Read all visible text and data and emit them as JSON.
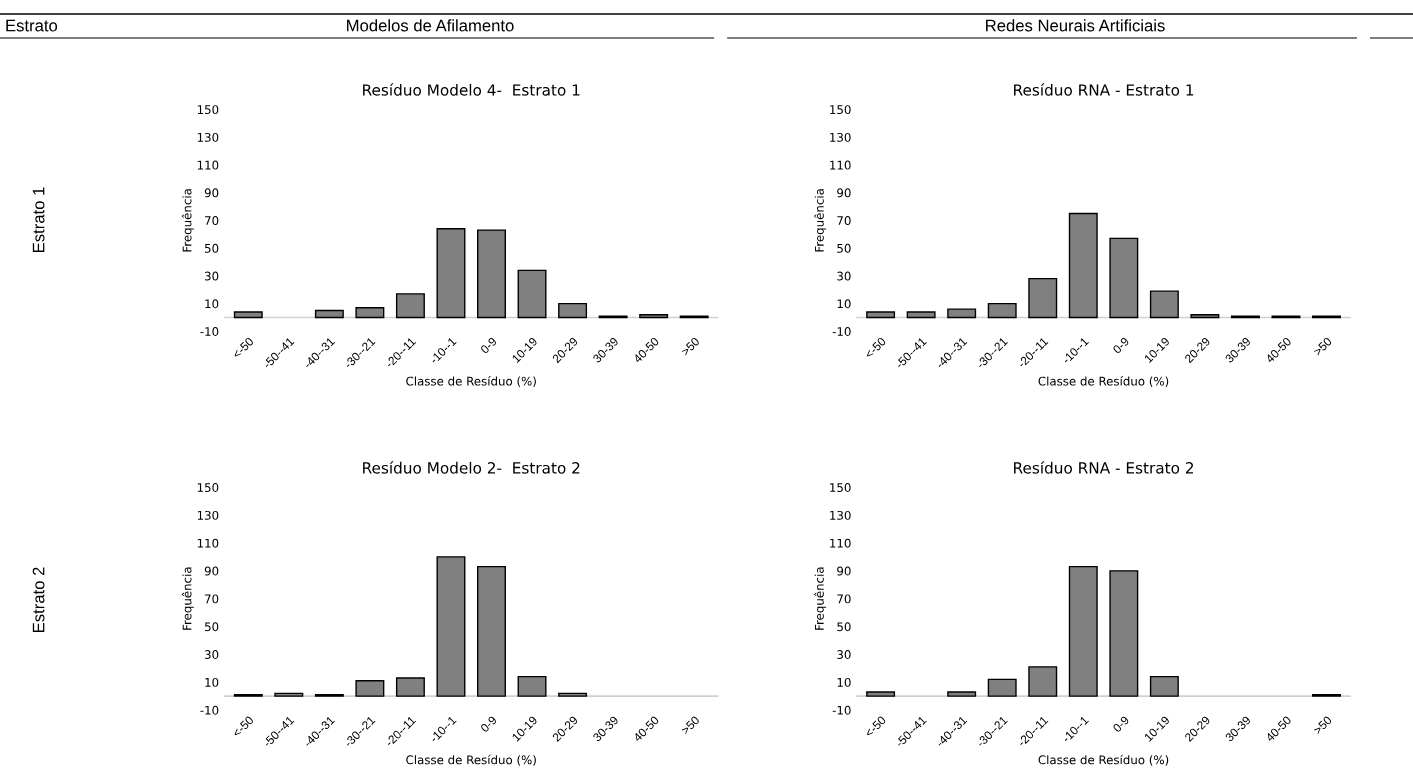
{
  "chart_data": [
    {
      "type": "bar",
      "title": "Resíduo Modelo 4-  Estrato 1",
      "xlabel": "Classe de Resíduo (%)",
      "ylabel": "Frequência",
      "annotations": [
        "Estrato",
        "Modelos de Afilamento",
        "Estrato 1"
      ],
      "categories": [
        "<-50",
        "-50--41",
        "-40--31",
        "-30--21",
        "-20--11",
        "-10--1",
        "0-9",
        "10-19",
        "20-29",
        "30-39",
        "40-50",
        ">50"
      ],
      "values": [
        4,
        0,
        5,
        7,
        17,
        64,
        63,
        34,
        10,
        1,
        2,
        1
      ],
      "color": "#808080",
      "ylim": [
        -10,
        150
      ],
      "yticks": [
        -10,
        10,
        30,
        50,
        70,
        90,
        110,
        130,
        150
      ],
      "grid": false,
      "legend": false
    },
    {
      "type": "bar",
      "title": "Resíduo RNA - Estrato 1",
      "xlabel": "Classe de Resíduo (%)",
      "ylabel": "Frequência",
      "annotations": [
        "Redes Neurais Artificiais"
      ],
      "categories": [
        "<-50",
        "-50--41",
        "-40--31",
        "-30--21",
        "-20--11",
        "-10--1",
        "0-9",
        "10-19",
        "20-29",
        "30-39",
        "40-50",
        ">50"
      ],
      "values": [
        4,
        4,
        6,
        10,
        28,
        75,
        57,
        19,
        2,
        1,
        1,
        1
      ],
      "color": "#808080",
      "ylim": [
        -10,
        150
      ],
      "yticks": [
        -10,
        10,
        30,
        50,
        70,
        90,
        110,
        130,
        150
      ],
      "grid": false,
      "legend": false
    },
    {
      "type": "bar",
      "title": "Resíduo Modelo 2-  Estrato 2",
      "xlabel": "Classe de Resíduo (%)",
      "ylabel": "Frequência",
      "annotations": [
        "Estrato 2"
      ],
      "categories": [
        "<-50",
        "-50--41",
        "-40--31",
        "-30--21",
        "-20--11",
        "-10--1",
        "0-9",
        "10-19",
        "20-29",
        "30-39",
        "40-50",
        ">50"
      ],
      "values": [
        1,
        2,
        1,
        11,
        13,
        100,
        93,
        14,
        2,
        0,
        0,
        0
      ],
      "color": "#808080",
      "ylim": [
        -10,
        150
      ],
      "yticks": [
        -10,
        10,
        30,
        50,
        70,
        90,
        110,
        130,
        150
      ],
      "grid": false,
      "legend": false
    },
    {
      "type": "bar",
      "title": "Resíduo RNA - Estrato 2",
      "xlabel": "Classe de Resíduo (%)",
      "ylabel": "Frequência",
      "categories": [
        "<-50",
        "-50--41",
        "-40--31",
        "-30--21",
        "-20--11",
        "-10--1",
        "0-9",
        "10-19",
        "20-29",
        "30-39",
        "40-50",
        ">50"
      ],
      "values": [
        3,
        0,
        3,
        12,
        21,
        93,
        90,
        14,
        0,
        0,
        0,
        1
      ],
      "color": "#808080",
      "ylim": [
        -10,
        150
      ],
      "yticks": [
        -10,
        10,
        30,
        50,
        70,
        90,
        110,
        130,
        150
      ],
      "grid": false,
      "legend": false
    }
  ]
}
